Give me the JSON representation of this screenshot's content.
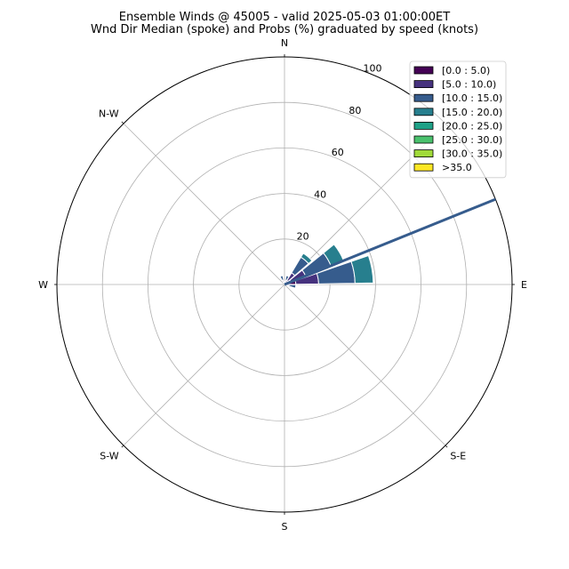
{
  "chart_data": {
    "type": "windrose",
    "title_line1": "Ensemble Winds @ 45005 - valid 2025-05-03 01:00:00ET",
    "title_line2": "Wnd Dir Median (spoke) and Probs (%) graduated by speed (knots)",
    "direction_labels": [
      {
        "text": "N",
        "deg": 0
      },
      {
        "text": "N-W",
        "deg": 315
      },
      {
        "text": "W",
        "deg": 270
      },
      {
        "text": "S-W",
        "deg": 225
      },
      {
        "text": "S",
        "deg": 180
      },
      {
        "text": "S-E",
        "deg": 135
      },
      {
        "text": "E",
        "deg": 90
      }
    ],
    "radial_ticks": [
      20,
      40,
      60,
      80,
      100
    ],
    "rmax": 100,
    "legend_placement": "top-right",
    "bins": [
      {
        "label": "[0.0 : 5.0)",
        "color": "#440154"
      },
      {
        "label": "[5.0 : 10.0)",
        "color": "#46327e"
      },
      {
        "label": "[10.0 : 15.0)",
        "color": "#365c8d"
      },
      {
        "label": "[15.0 : 20.0)",
        "color": "#277f8e"
      },
      {
        "label": "[20.0 : 25.0)",
        "color": "#1fa187"
      },
      {
        "label": "[25.0 : 30.0)",
        "color": "#4ac16d"
      },
      {
        "label": "[30.0 : 35.0)",
        "color": "#a0da39"
      },
      {
        "label": ">35.0",
        "color": "#fde725"
      }
    ],
    "sector_width_deg": 20,
    "sectors": [
      {
        "dir_deg": 20,
        "values": [
          1,
          1,
          2,
          0,
          0,
          0,
          0,
          0
        ]
      },
      {
        "dir_deg": 40,
        "values": [
          2,
          4,
          8,
          2,
          0,
          0,
          0,
          0
        ]
      },
      {
        "dir_deg": 60,
        "values": [
          3,
          7,
          12,
          6,
          0,
          0,
          0,
          0
        ]
      },
      {
        "dir_deg": 80,
        "values": [
          5,
          10,
          16,
          8,
          0,
          0,
          0,
          0
        ]
      },
      {
        "dir_deg": 100,
        "values": [
          1,
          1,
          3,
          0,
          0,
          0,
          0,
          0
        ]
      },
      {
        "dir_deg": 340,
        "values": [
          1,
          1,
          2,
          0,
          0,
          0,
          0,
          0
        ]
      }
    ],
    "median_spoke": {
      "dir_deg": 68,
      "color": "#365c8d"
    }
  }
}
